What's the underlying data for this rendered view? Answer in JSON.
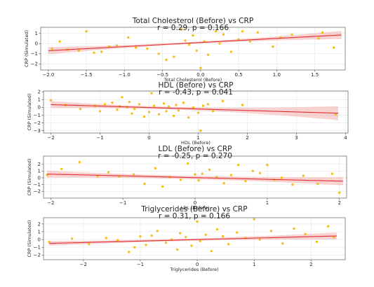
{
  "chart_data": [
    {
      "type": "scatter",
      "title": "Total Cholesterol (Before) vs CRP",
      "subtitle": "r = 0.29, p = 0.166",
      "xlabel": "Total Cholesterol (Before)",
      "ylabel": "CRP (Simulated)",
      "xlim": [
        -2.1,
        1.9
      ],
      "ylim": [
        -2.6,
        1.6
      ],
      "xticks": [
        -2.0,
        -1.5,
        -1.0,
        -0.5,
        0.0,
        0.5,
        1.0,
        1.5,
        2.0
      ],
      "xtick_labels": [
        "−2.0",
        "−1.5",
        "−1.0",
        "−0.5",
        "0.0",
        "0.5",
        "1.0",
        "1.5",
        "2.0"
      ],
      "yticks": [
        -2,
        -1,
        0,
        1
      ],
      "ytick_labels": [
        "−2",
        "−1",
        "0",
        "1"
      ],
      "grid": true,
      "fit": {
        "x": [
          -2.0,
          1.85
        ],
        "y": [
          -0.7,
          0.85
        ],
        "ci_width": [
          0.35,
          0.1,
          0.4
        ]
      },
      "x": [
        -1.95,
        -1.85,
        -1.75,
        -1.6,
        -1.5,
        -1.4,
        -1.3,
        -1.2,
        -1.1,
        -0.95,
        -0.85,
        -0.7,
        -0.55,
        -0.45,
        -0.35,
        -0.25,
        -0.2,
        -0.15,
        -0.1,
        -0.05,
        0.0,
        0.05,
        0.1,
        0.2,
        0.25,
        0.3,
        0.4,
        0.5,
        0.55,
        0.65,
        0.75,
        0.95,
        1.05,
        1.2,
        1.55,
        1.6,
        1.75
      ],
      "y": [
        -0.5,
        0.2,
        -0.6,
        -0.7,
        1.2,
        -0.9,
        -0.8,
        -0.3,
        -0.2,
        0.6,
        -0.4,
        -0.5,
        -1.0,
        -1.6,
        -1.3,
        1.4,
        0.3,
        -0.1,
        0.8,
        -0.7,
        -2.4,
        0.2,
        -1.1,
        1.2,
        0.0,
        0.9,
        -0.8,
        0.4,
        1.2,
        0.2,
        1.1,
        -0.3,
        0.6,
        0.9,
        0.5,
        1.1,
        -0.4
      ]
    },
    {
      "type": "scatter",
      "title": "HDL (Before) vs CRP",
      "subtitle": "r = -0.43, p = 0.041",
      "xlabel": "HDL (Before)",
      "ylabel": "CRP (Simulated)",
      "xlim": [
        -2.15,
        4.05
      ],
      "ylim": [
        -3.3,
        2.1
      ],
      "xticks": [
        -2,
        -1,
        0,
        1,
        2,
        3,
        4
      ],
      "xtick_labels": [
        "−2",
        "−1",
        "0",
        "1",
        "2",
        "3",
        "4"
      ],
      "yticks": [
        -3,
        -2,
        -1,
        0,
        1,
        2
      ],
      "ytick_labels": [
        "−3",
        "−2",
        "−1",
        "0",
        "1",
        "2"
      ],
      "grid": true,
      "fit": {
        "x": [
          -2.0,
          3.85
        ],
        "y": [
          0.35,
          -0.75
        ],
        "ci_width": [
          0.45,
          0.2,
          0.9
        ]
      },
      "x": [
        -2.0,
        -1.7,
        -1.4,
        -1.1,
        -1.0,
        -0.9,
        -0.75,
        -0.65,
        -0.6,
        -0.55,
        -0.45,
        -0.4,
        -0.35,
        -0.3,
        -0.2,
        -0.1,
        0.0,
        0.05,
        0.1,
        0.2,
        0.3,
        0.35,
        0.4,
        0.5,
        0.55,
        0.6,
        0.7,
        0.8,
        0.9,
        1.0,
        1.05,
        1.1,
        1.2,
        1.3,
        1.5,
        1.9,
        3.8
      ],
      "y": [
        0.9,
        0.3,
        -0.2,
        0.2,
        -0.5,
        0.4,
        0.6,
        -0.3,
        0.1,
        1.3,
        0.0,
        0.7,
        -0.8,
        -0.2,
        0.4,
        -1.2,
        -0.6,
        1.8,
        0.2,
        -0.9,
        0.5,
        -0.5,
        0.1,
        -1.1,
        0.3,
        -0.4,
        0.6,
        -1.3,
        0.0,
        -0.7,
        -3.0,
        0.2,
        0.4,
        -0.5,
        0.8,
        0.3,
        -0.9
      ]
    },
    {
      "type": "scatter",
      "title": "LDL (Before) vs CRP",
      "subtitle": "r = -0.25, p = 0.270",
      "xlabel": "LDL (Before)",
      "ylabel": "CRP (Simulated)",
      "xlim": [
        -2.1,
        2.1
      ],
      "ylim": [
        -3.0,
        3.2
      ],
      "xticks": [
        -2,
        -1,
        0,
        1,
        2
      ],
      "xtick_labels": [
        "−2",
        "−1",
        "0",
        "1",
        "2"
      ],
      "yticks": [
        -2,
        -1,
        0,
        1,
        2
      ],
      "ytick_labels": [
        "−2",
        "−1",
        "0",
        "1",
        "2"
      ],
      "grid": true,
      "fit": {
        "x": [
          -2.05,
          2.05
        ],
        "y": [
          0.55,
          -0.5
        ],
        "ci_width": [
          0.5,
          0.25,
          0.6
        ]
      },
      "x": [
        -2.05,
        -1.85,
        -1.6,
        -1.35,
        -1.2,
        -1.05,
        -0.85,
        -0.7,
        -0.55,
        -0.45,
        -0.35,
        -0.2,
        -0.1,
        0.0,
        0.05,
        0.1,
        0.2,
        0.3,
        0.4,
        0.5,
        0.6,
        0.7,
        0.8,
        0.9,
        1.0,
        1.1,
        1.2,
        1.35,
        1.5,
        1.7,
        1.9,
        2.0
      ],
      "y": [
        0.4,
        1.3,
        2.3,
        0.2,
        0.8,
        0.2,
        0.5,
        -0.9,
        1.4,
        -1.3,
        0.1,
        -0.3,
        2.1,
        0.5,
        -0.4,
        0.6,
        1.2,
        0.1,
        -0.8,
        0.4,
        1.9,
        -0.5,
        1.0,
        0.7,
        1.9,
        -0.3,
        0.0,
        -1.0,
        0.3,
        -0.9,
        0.6,
        -2.2
      ]
    },
    {
      "type": "scatter",
      "title": "Triglycerides (Before) vs CRP",
      "subtitle": "r = 0.31, p = 0.166",
      "xlabel": "Triglycerides (Before)",
      "ylabel": "CRP (Simulated)",
      "xlim": [
        -2.7,
        2.6
      ],
      "ylim": [
        -2.6,
        2.8
      ],
      "xticks": [
        -2,
        -1,
        0,
        1,
        2
      ],
      "xtick_labels": [
        "−2",
        "−1",
        "0",
        "1",
        "2"
      ],
      "yticks": [
        -2,
        -1,
        0,
        1,
        2
      ],
      "ytick_labels": [
        "−2",
        "−1",
        "0",
        "1",
        "2"
      ],
      "grid": true,
      "fit": {
        "x": [
          -2.6,
          2.45
        ],
        "y": [
          -0.5,
          0.45
        ],
        "ci_width": [
          0.3,
          0.15,
          0.45
        ]
      },
      "x": [
        -2.6,
        -2.2,
        -1.9,
        -1.6,
        -1.4,
        -1.2,
        -1.1,
        -1.0,
        -0.9,
        -0.8,
        -0.7,
        -0.55,
        -0.45,
        -0.35,
        -0.3,
        -0.2,
        -0.1,
        0.0,
        0.05,
        0.15,
        0.25,
        0.35,
        0.45,
        0.55,
        0.7,
        0.85,
        1.0,
        1.1,
        1.3,
        1.5,
        1.7,
        1.9,
        2.1,
        2.3,
        2.4
      ],
      "y": [
        -0.3,
        0.1,
        -0.6,
        0.2,
        -0.1,
        -1.6,
        -1.0,
        0.4,
        -0.7,
        0.5,
        1.1,
        -0.4,
        0.0,
        -1.3,
        0.8,
        0.3,
        -0.8,
        2.3,
        -0.2,
        0.6,
        -1.5,
        1.3,
        0.4,
        -0.6,
        0.9,
        0.2,
        2.6,
        0.0,
        1.1,
        -0.5,
        1.4,
        0.7,
        -0.3,
        1.7,
        0.3
      ]
    }
  ]
}
